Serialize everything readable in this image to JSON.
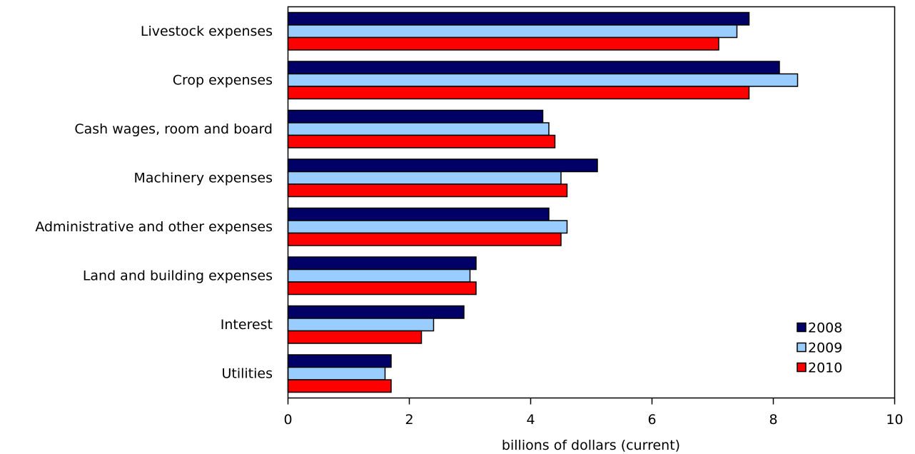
{
  "chart_data": {
    "type": "bar",
    "orientation": "horizontal",
    "categories": [
      "Livestock expenses",
      "Crop expenses",
      "Cash wages, room and board",
      "Machinery expenses",
      "Administrative and other expenses",
      "Land and building expenses",
      "Interest",
      "Utilities"
    ],
    "series": [
      {
        "name": "2008",
        "color": "#000066",
        "values": [
          7.6,
          8.1,
          4.2,
          5.1,
          4.3,
          3.1,
          2.9,
          1.7
        ]
      },
      {
        "name": "2009",
        "color": "#99ccff",
        "values": [
          7.4,
          8.4,
          4.3,
          4.5,
          4.6,
          3.0,
          2.4,
          1.6
        ]
      },
      {
        "name": "2010",
        "color": "#ff0000",
        "values": [
          7.1,
          7.6,
          4.4,
          4.6,
          4.5,
          3.1,
          2.2,
          1.7
        ]
      }
    ],
    "xlim": [
      0,
      10
    ],
    "xticks": [
      "0",
      "2",
      "4",
      "6",
      "8",
      "10"
    ],
    "xlabel": "billions of dollars (current)",
    "title": "",
    "legend_position": "bottom-right",
    "grid": false
  }
}
